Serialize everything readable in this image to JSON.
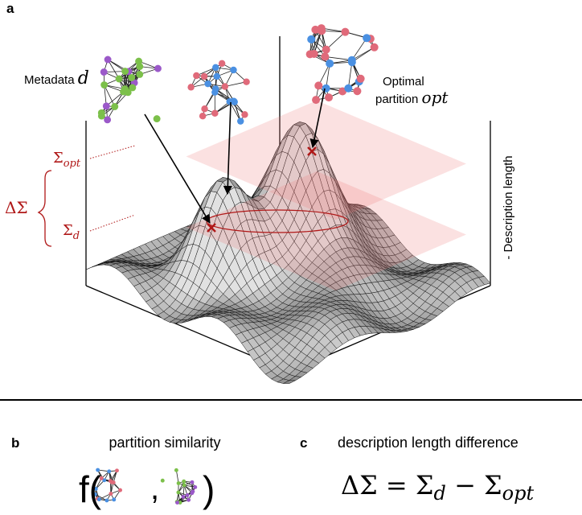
{
  "panel_a": {
    "label": "a",
    "metadata_label": {
      "text": "Metadata",
      "symbol": "d"
    },
    "optimal_label": {
      "line1": "Optimal",
      "line2": "partition",
      "symbol": "opt"
    },
    "sigma_opt": {
      "symbol": "Σ",
      "sub": "opt"
    },
    "delta_sigma": "ΔΣ",
    "sigma_d": {
      "symbol": "Σ",
      "sub": "d"
    },
    "axis_label": "- Description length"
  },
  "panel_b": {
    "label": "b",
    "title": "partition similarity",
    "open": "f(",
    "comma": ",",
    "close": ")"
  },
  "panel_c": {
    "label": "c",
    "title": "description length difference",
    "equation": {
      "lhs": "ΔΣ",
      "eq": "=",
      "t1": "Σ",
      "s1": "d",
      "minus": "−",
      "t2": "Σ",
      "s2": "opt"
    }
  }
}
